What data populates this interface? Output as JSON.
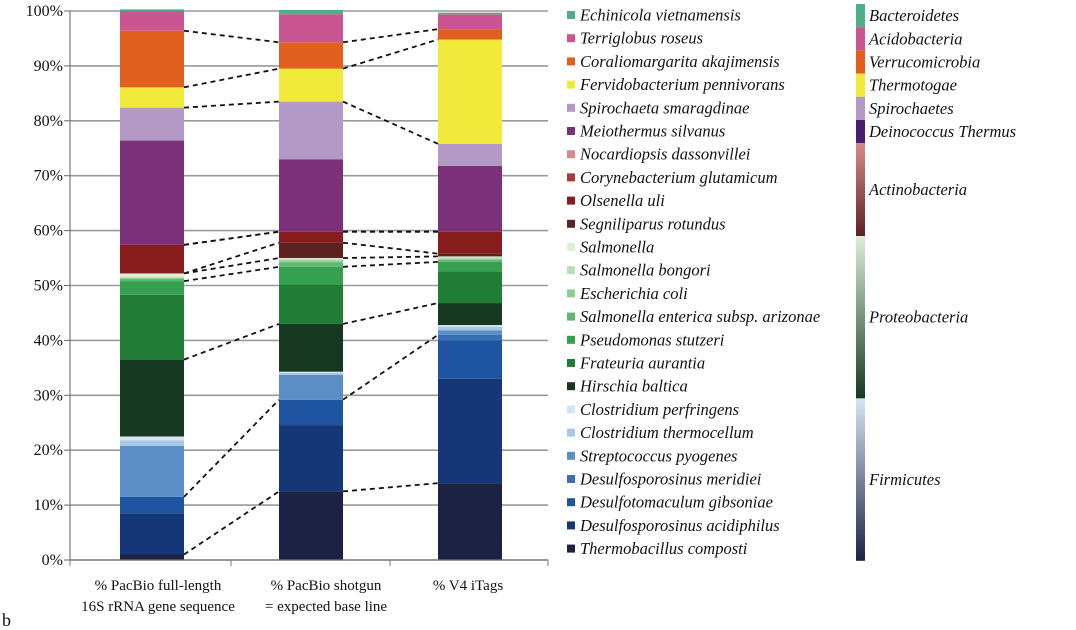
{
  "chart_data": {
    "type": "bar",
    "stacked": true,
    "percent": true,
    "categories": [
      [
        "% PacBio full-length",
        "16S rRNA gene sequence"
      ],
      [
        "% PacBio shotgun",
        "= expected base line"
      ],
      [
        "% V4 iTags"
      ]
    ],
    "ylim": [
      0,
      100
    ],
    "yticks": [
      "0%",
      "10%",
      "20%",
      "30%",
      "40%",
      "50%",
      "60%",
      "70%",
      "80%",
      "90%",
      "100%"
    ],
    "grid": true,
    "connector_lines": "dashed",
    "legend_position": "right",
    "series": [
      {
        "name": "Thermobacillus composti",
        "color": "#1c2244",
        "values": [
          1.0,
          12.5,
          14.0
        ]
      },
      {
        "name": "Desulfosporosinus acidiphilus",
        "color": "#153677",
        "values": [
          7.5,
          12.0,
          19.0
        ]
      },
      {
        "name": "Desulfotomaculum gibsoniae",
        "color": "#1e54a0",
        "values": [
          3.0,
          4.7,
          7.0
        ]
      },
      {
        "name": "Desulfosporosinus meridiei",
        "color": "#3a6fb7",
        "values": [
          0.0,
          0.0,
          1.0
        ]
      },
      {
        "name": "Streptococcus pyogenes",
        "color": "#5c8ec6",
        "values": [
          9.3,
          4.5,
          0.8
        ]
      },
      {
        "name": "Clostridium thermocellum",
        "color": "#a8c7e4",
        "values": [
          1.0,
          0.4,
          0.7
        ]
      },
      {
        "name": "Clostridium perfringens",
        "color": "#d5e5f2",
        "values": [
          0.7,
          0.2,
          0.3
        ]
      },
      {
        "name": "Hirschia baltica",
        "color": "#163821",
        "values": [
          14.0,
          8.7,
          4.0
        ]
      },
      {
        "name": "Frateuria aurantia",
        "color": "#217c36",
        "values": [
          11.8,
          7.2,
          5.8
        ]
      },
      {
        "name": "Pseudomonas stutzeri",
        "color": "#35a04f",
        "values": [
          2.5,
          3.2,
          1.7
        ]
      },
      {
        "name": "Salmonella enterica subsp. arizonae",
        "color": "#5fb870",
        "values": [
          0.4,
          0.8,
          0.4
        ]
      },
      {
        "name": "Escherichia coli",
        "color": "#8ccf93",
        "values": [
          0.2,
          0.4,
          0.2
        ]
      },
      {
        "name": "Salmonella bongori",
        "color": "#b7dfb7",
        "values": [
          0.2,
          0.2,
          0.2
        ]
      },
      {
        "name": "Salmonella",
        "color": "#dcefd7",
        "values": [
          0.6,
          0.2,
          0.2
        ]
      },
      {
        "name": "Segniliparus rotundus",
        "color": "#5e2222",
        "values": [
          0.0,
          2.8,
          0.5
        ]
      },
      {
        "name": "Olsenella uli",
        "color": "#861c1c",
        "values": [
          5.2,
          2.0,
          4.0
        ]
      },
      {
        "name": "Corynebacterium glutamicum",
        "color": "#a83a3a",
        "values": [
          0.0,
          0.0,
          0.0
        ]
      },
      {
        "name": "Nocardiopsis dassonvillei",
        "color": "#d68b8b",
        "values": [
          0.0,
          0.0,
          0.0
        ]
      },
      {
        "name": "Meiothermus silvanus",
        "color": "#7b3179",
        "values": [
          19.0,
          13.2,
          12.0
        ]
      },
      {
        "name": "Spirochaeta smaragdinae",
        "color": "#b399c6",
        "values": [
          6.0,
          10.5,
          4.0
        ]
      },
      {
        "name": "Fervidobacterium pennivorans",
        "color": "#f2ea3a",
        "values": [
          3.7,
          6.0,
          19.0
        ]
      },
      {
        "name": "Coraliomargarita akajimensis",
        "color": "#e2601f",
        "values": [
          10.3,
          4.8,
          1.9
        ]
      },
      {
        "name": "Terriglobus roseus",
        "color": "#cb5590",
        "values": [
          3.6,
          5.1,
          2.7
        ]
      },
      {
        "name": "Echinicola vietnamensis",
        "color": "#4fae8a",
        "values": [
          0.3,
          0.8,
          0.3
        ]
      }
    ],
    "legend_order": [
      "Echinicola vietnamensis",
      "Terriglobus roseus",
      "Coraliomargarita akajimensis",
      "Fervidobacterium pennivorans",
      "Spirochaeta smaragdinae",
      "Meiothermus silvanus",
      "Nocardiopsis dassonvillei",
      "Corynebacterium glutamicum",
      "Olsenella uli",
      "Segniliparus rotundus",
      "Salmonella",
      "Salmonella bongori",
      "Escherichia coli",
      "Salmonella enterica subsp. arizonae",
      "Pseudomonas stutzeri",
      "Frateuria aurantia",
      "Hirschia baltica",
      "Clostridium perfringens",
      "Clostridium thermocellum",
      "Streptococcus pyogenes",
      "Desulfosporosinus meridiei",
      "Desulfotomaculum gibsoniae",
      "Desulfosporosinus acidiphilus",
      "Thermobacillus composti"
    ],
    "phyla": [
      {
        "name": "Bacteroidetes",
        "colors": [
          "#4fae8a",
          "#4fae8a"
        ],
        "rows": 1
      },
      {
        "name": "Acidobacteria",
        "colors": [
          "#cb5590",
          "#cb5590"
        ],
        "rows": 1
      },
      {
        "name": "Verrucomicrobia",
        "colors": [
          "#e2601f",
          "#e2601f"
        ],
        "rows": 1
      },
      {
        "name": "Thermotogae",
        "colors": [
          "#f2ea3a",
          "#f2ea3a"
        ],
        "rows": 1
      },
      {
        "name": "Spirochaetes",
        "colors": [
          "#b399c6",
          "#b399c6"
        ],
        "rows": 1
      },
      {
        "name": "Deinococcus Thermus",
        "colors": [
          "#4a1d6e",
          "#4a1d6e"
        ],
        "rows": 1
      },
      {
        "name": "Actinobacteria",
        "colors": [
          "#d68b8b",
          "#5e2222"
        ],
        "rows": 4
      },
      {
        "name": "Proteobacteria",
        "colors": [
          "#dcefd7",
          "#163821"
        ],
        "rows": 7
      },
      {
        "name": "Firmicutes",
        "colors": [
          "#d5e5f2",
          "#1c2244"
        ],
        "rows": 7
      }
    ],
    "corner_label": "b"
  }
}
